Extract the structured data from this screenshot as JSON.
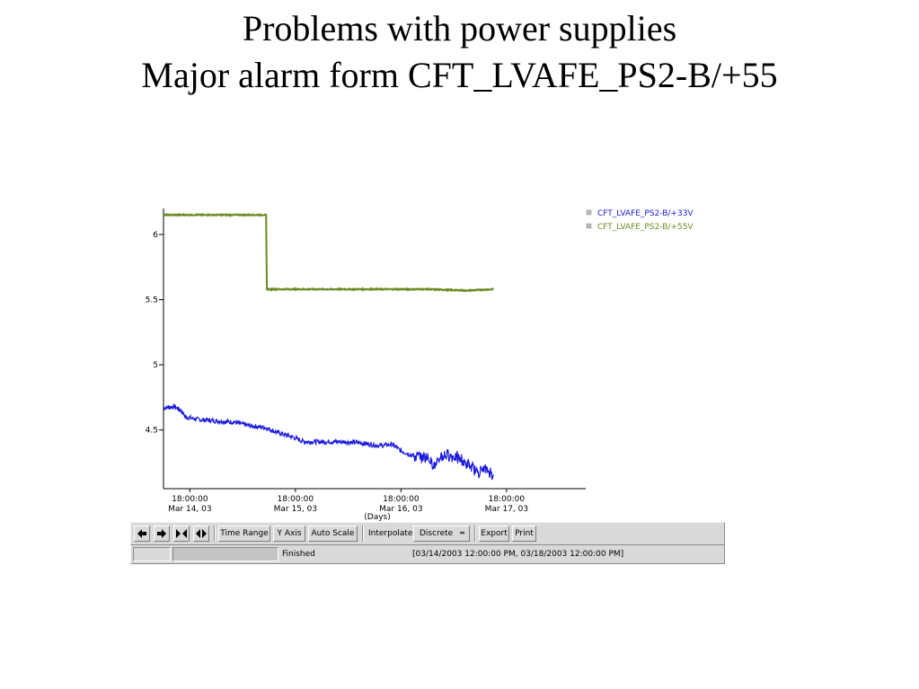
{
  "slide": {
    "title_line1": "Problems with power supplies",
    "title_line2": "Major alarm form CFT_LVAFE_PS2-B/+55"
  },
  "chart_data": {
    "type": "line",
    "title": "",
    "xlabel": "(Days)",
    "ylabel": "",
    "ylim": [
      4.05,
      6.2
    ],
    "xlim": [
      "2003-03-14 12:00",
      "2003-03-18 12:00"
    ],
    "x_ticks": [
      {
        "line1": "18:00:00",
        "line2": "Mar 14, 03",
        "t": "2003-03-14 18:00"
      },
      {
        "line1": "18:00:00",
        "line2": "Mar 15, 03",
        "t": "2003-03-15 18:00"
      },
      {
        "line1": "18:00:00",
        "line2": "Mar 16, 03",
        "t": "2003-03-16 18:00"
      },
      {
        "line1": "18:00:00",
        "line2": "Mar 17, 03",
        "t": "2003-03-17 18:00"
      }
    ],
    "y_ticks": [
      {
        "label": "6",
        "value": 6.0
      },
      {
        "label": "5.5",
        "value": 5.5
      },
      {
        "label": "5",
        "value": 5.0
      },
      {
        "label": "4.5",
        "value": 4.5
      }
    ],
    "legend_position": "top-right",
    "series": [
      {
        "name": "CFT_LVAFE_PS2-B/+33V",
        "color": "#1a1adb",
        "points": [
          [
            "2003-03-14 12:00",
            4.67
          ],
          [
            "2003-03-14 14:30",
            4.68
          ],
          [
            "2003-03-14 16:00",
            4.65
          ],
          [
            "2003-03-14 17:00",
            4.6
          ],
          [
            "2003-03-14 20:00",
            4.58
          ],
          [
            "2003-03-15 00:00",
            4.57
          ],
          [
            "2003-03-15 04:00",
            4.56
          ],
          [
            "2003-03-15 08:00",
            4.53
          ],
          [
            "2003-03-15 11:00",
            4.52
          ],
          [
            "2003-03-15 14:00",
            4.48
          ],
          [
            "2003-03-15 17:00",
            4.45
          ],
          [
            "2003-03-15 20:00",
            4.41
          ],
          [
            "2003-03-16 00:00",
            4.41
          ],
          [
            "2003-03-16 05:00",
            4.41
          ],
          [
            "2003-03-16 09:00",
            4.4
          ],
          [
            "2003-03-16 13:00",
            4.38
          ],
          [
            "2003-03-16 16:00",
            4.39
          ],
          [
            "2003-03-16 18:00",
            4.34
          ],
          [
            "2003-03-16 21:00",
            4.3
          ],
          [
            "2003-03-17 00:00",
            4.29
          ],
          [
            "2003-03-17 02:00",
            4.22
          ],
          [
            "2003-03-17 03:00",
            4.3
          ],
          [
            "2003-03-17 05:00",
            4.31
          ],
          [
            "2003-03-17 07:00",
            4.28
          ],
          [
            "2003-03-17 09:00",
            4.24
          ],
          [
            "2003-03-17 11:00",
            4.18
          ],
          [
            "2003-03-17 13:00",
            4.2
          ],
          [
            "2003-03-17 15:00",
            4.16
          ]
        ]
      },
      {
        "name": "CFT_LVAFE_PS2-B/+55V",
        "color": "#6a8c22",
        "points": [
          [
            "2003-03-14 12:00",
            6.15
          ],
          [
            "2003-03-15 11:20",
            6.15
          ],
          [
            "2003-03-15 11:30",
            5.58
          ],
          [
            "2003-03-16 00:00",
            5.58
          ],
          [
            "2003-03-16 12:00",
            5.58
          ],
          [
            "2003-03-17 00:00",
            5.58
          ],
          [
            "2003-03-17 09:00",
            5.57
          ],
          [
            "2003-03-17 15:00",
            5.58
          ]
        ]
      }
    ]
  },
  "toolbar": {
    "icons": [
      "back-arrow-icon",
      "forward-arrow-icon",
      "collapse-icon",
      "expand-icon"
    ],
    "time_range": "Time Range",
    "y_axis": "Y Axis",
    "auto_scale": "Auto Scale",
    "interpolate_label": "Interpolate:",
    "interpolate_value": "Discrete",
    "export": "Export",
    "print": "Print"
  },
  "status": {
    "text": "Finished",
    "range": "[03/14/2003 12:00:00 PM, 03/18/2003 12:00:00 PM]"
  }
}
